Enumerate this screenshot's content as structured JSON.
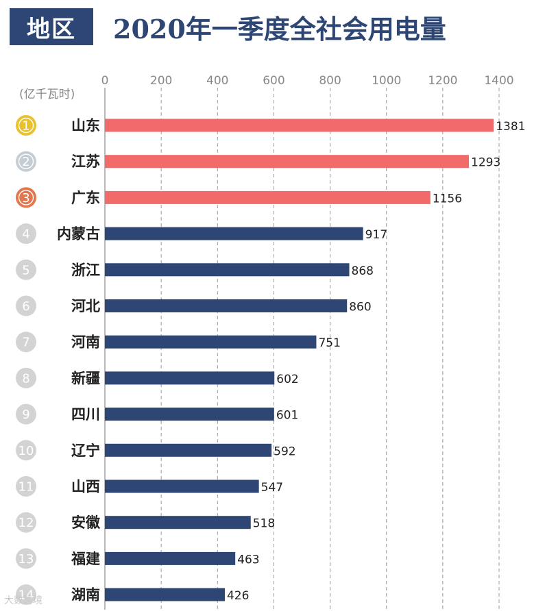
{
  "badge": "地区",
  "watermark": "大数跨境",
  "chart_data": {
    "type": "bar",
    "orientation": "horizontal",
    "title": "2020年一季度全社会用电量",
    "unit": "(亿千瓦时)",
    "categories": [
      "山东",
      "江苏",
      "广东",
      "内蒙古",
      "浙江",
      "河北",
      "河南",
      "新疆",
      "四川",
      "辽宁",
      "山西",
      "安徽",
      "福建",
      "湖南"
    ],
    "ranks": [
      "1",
      "2",
      "3",
      "4",
      "5",
      "6",
      "7",
      "8",
      "9",
      "10",
      "11",
      "12",
      "13",
      "14"
    ],
    "values": [
      1381,
      1293,
      1156,
      917,
      868,
      860,
      751,
      602,
      601,
      592,
      547,
      518,
      463,
      426
    ],
    "xlim": [
      0,
      1400
    ],
    "xticks": [
      0,
      200,
      400,
      600,
      800,
      1000,
      1200,
      1400
    ],
    "grid": true,
    "colors": {
      "top3_bar": "#f26b6b",
      "other_bar": "#2e4674",
      "rank_gold": "#e8c12f",
      "rank_silver": "#c5ccd3",
      "rank_bronze": "#e2774f",
      "rank_default": "#d3d3d3",
      "grid": "#9a9a9a"
    }
  }
}
